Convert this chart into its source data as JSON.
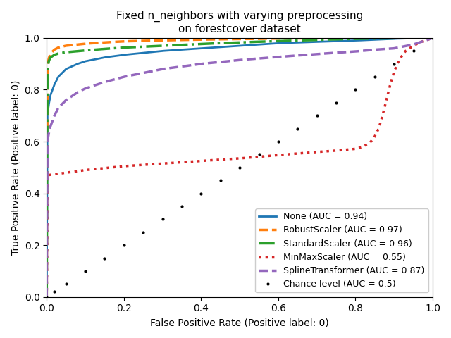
{
  "title": "Fixed n_neighbors with varying preprocessing\non forestcover dataset",
  "xlabel": "False Positive Rate (Positive label: 0)",
  "ylabel": "True Positive Rate (Positive label: 0)",
  "xlim": [
    0.0,
    1.0
  ],
  "ylim": [
    0.0,
    1.0
  ],
  "curves": [
    {
      "label": "None (AUC = 0.94)",
      "color": "#1f77b4",
      "linestyle": "solid",
      "linewidth": 2.0,
      "key": "none"
    },
    {
      "label": "RobustScaler (AUC = 0.97)",
      "color": "#ff7f0e",
      "linestyle": "dashed",
      "linewidth": 2.5,
      "key": "robust"
    },
    {
      "label": "StandardScaler (AUC = 0.96)",
      "color": "#2ca02c",
      "linestyle": "dashdot",
      "linewidth": 2.5,
      "key": "standard"
    },
    {
      "label": "MinMaxScaler (AUC = 0.55)",
      "color": "#d62728",
      "linestyle": "dotted",
      "linewidth": 2.5,
      "key": "minmax"
    },
    {
      "label": "SplineTransformer (AUC = 0.87)",
      "color": "#9467bd",
      "linestyle": "dashed",
      "linewidth": 2.5,
      "key": "spline"
    }
  ],
  "chance_label": "Chance level (AUC = 0.5)",
  "chance_color": "black",
  "chance_markersize": 4,
  "background_color": "#ffffff",
  "legend_loc": "lower right",
  "legend_fontsize": 9,
  "title_fontsize": 11,
  "axis_fontsize": 10
}
